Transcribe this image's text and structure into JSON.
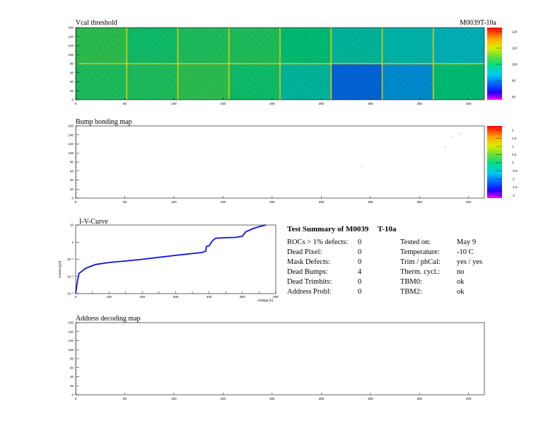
{
  "header": {
    "module_label": "M0039T-10a"
  },
  "vcal": {
    "title": "Vcal threshold",
    "scale_labels": [
      "120",
      "110",
      "100",
      "90",
      "80"
    ]
  },
  "bump": {
    "title": "Bump bonding map",
    "scale_labels": [
      "2",
      "1.5",
      "1",
      "0.5",
      "0",
      "-0.5",
      "-1",
      "-1.5",
      "-2"
    ]
  },
  "iv": {
    "title": "I-V-Curve",
    "ylabel": "Current [μA]",
    "xlabel": "Voltage [V]"
  },
  "addr": {
    "title": "Address decoding map"
  },
  "map_axes": {
    "x_ticks": [
      "0",
      "50",
      "100",
      "150",
      "200",
      "250",
      "300",
      "350",
      "400"
    ],
    "y_ticks": [
      "0",
      "20",
      "40",
      "60",
      "80",
      "100",
      "120",
      "140",
      "160"
    ]
  },
  "summary": {
    "title": "Test Summary of M0039",
    "module_id": "T-10a",
    "left": [
      {
        "label": "ROCs > 1% defects:",
        "value": "0"
      },
      {
        "label": "Dead Pixel:",
        "value": "0"
      },
      {
        "label": "Mask Defects:",
        "value": "0"
      },
      {
        "label": "Dead Bumps:",
        "value": "4"
      },
      {
        "label": "Dead Trimbits:",
        "value": "0"
      },
      {
        "label": "Address Probl:",
        "value": "0"
      }
    ],
    "right": [
      {
        "label": "Tested on:",
        "value": "May 9"
      },
      {
        "label": "Temperature:",
        "value": "-10 C"
      },
      {
        "label": "Trim / phCal:",
        "value": "yes / yes"
      },
      {
        "label": "Therm. cycl.:",
        "value": "no"
      },
      {
        "label": "TBM0:",
        "value": "ok"
      },
      {
        "label": "TBM2:",
        "value": "ok"
      }
    ]
  },
  "chart_data": [
    {
      "type": "heatmap",
      "title": "Vcal threshold",
      "x_range": [
        0,
        416
      ],
      "y_range": [
        0,
        160
      ],
      "z_range": [
        75,
        125
      ],
      "grid": "2 x 8 chips",
      "chip_mean_values": [
        [
          102,
          100,
          101,
          101,
          99,
          96,
          95,
          94
        ],
        [
          101,
          101,
          102,
          100,
          96,
          87,
          90,
          99
        ]
      ]
    },
    {
      "type": "scatter",
      "title": "Bump bonding map",
      "x_range": [
        0,
        416
      ],
      "y_range": [
        0,
        160
      ],
      "z_range": [
        -2,
        2
      ],
      "points": [
        {
          "x": 291,
          "y": 71
        },
        {
          "x": 392,
          "y": 142
        },
        {
          "x": 382,
          "y": 135
        },
        {
          "x": 376,
          "y": 113
        }
      ]
    },
    {
      "type": "line",
      "title": "I-V-Curve",
      "xlabel": "Voltage [V]",
      "ylabel": "Current [μA]",
      "x_range": [
        0,
        600
      ],
      "y_scale": "log",
      "y_range": [
        0.001,
        10
      ],
      "y_tick_labels": [
        "10⁻³",
        "10⁻²",
        "10⁻¹",
        "1",
        "10"
      ],
      "x_tick_labels": [
        "0",
        "50",
        "100",
        "150",
        "200",
        "250",
        "300",
        "350",
        "400",
        "450",
        "500",
        "550",
        "600"
      ],
      "points": [
        [
          0,
          0.001
        ],
        [
          5,
          0.005
        ],
        [
          10,
          0.015
        ],
        [
          30,
          0.03
        ],
        [
          60,
          0.05
        ],
        [
          100,
          0.065
        ],
        [
          150,
          0.08
        ],
        [
          200,
          0.1
        ],
        [
          250,
          0.13
        ],
        [
          300,
          0.17
        ],
        [
          380,
          0.25
        ],
        [
          390,
          0.3
        ],
        [
          392,
          0.55
        ],
        [
          395,
          0.6
        ],
        [
          400,
          0.6
        ],
        [
          410,
          1.2
        ],
        [
          420,
          1.7
        ],
        [
          440,
          1.8
        ],
        [
          480,
          1.9
        ],
        [
          500,
          2.2
        ],
        [
          510,
          4
        ],
        [
          530,
          6
        ],
        [
          550,
          8
        ],
        [
          570,
          10
        ]
      ]
    },
    {
      "type": "heatmap",
      "title": "Address decoding map",
      "x_range": [
        0,
        416
      ],
      "y_range": [
        0,
        160
      ],
      "entries": []
    }
  ]
}
